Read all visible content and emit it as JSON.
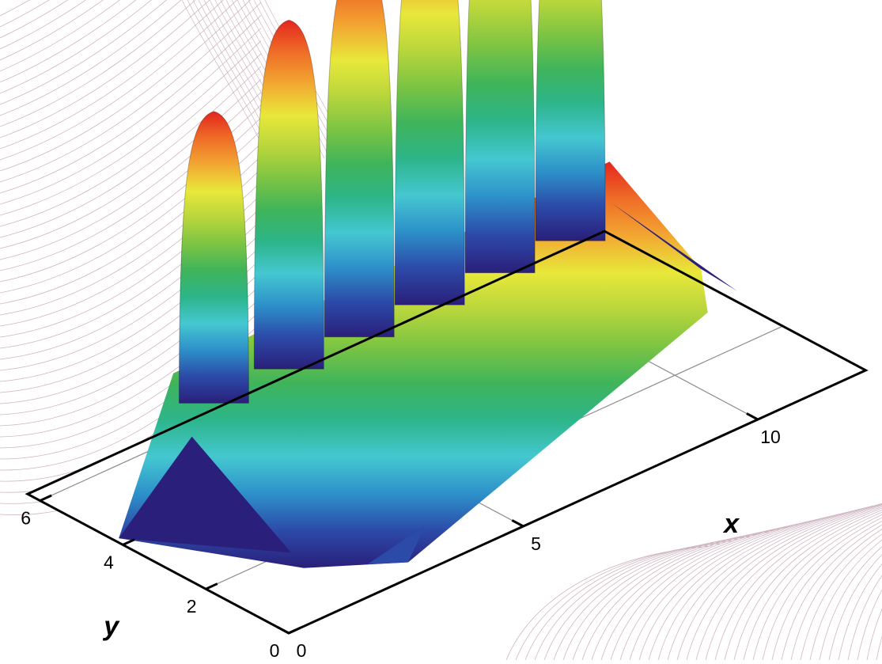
{
  "chart_data": {
    "type": "surface3d",
    "title": "",
    "xlabel": "x",
    "ylabel": "y",
    "xlim": [
      0,
      12.3
    ],
    "ylim": [
      0,
      6.3
    ],
    "x_ticks": [
      0,
      5,
      10
    ],
    "y_ticks": [
      0,
      2,
      4,
      6
    ],
    "grid": true,
    "colormap": [
      "#2a1f7a",
      "#2c4aa8",
      "#2d90c9",
      "#45c7d1",
      "#2db58a",
      "#3fb45a",
      "#7cc443",
      "#b9d63c",
      "#e8e83a",
      "#f2a732",
      "#ef6c27",
      "#e3261f"
    ],
    "surface": {
      "peaks": {
        "count": 6,
        "x": [
          3.0,
          4.6,
          6.1,
          7.6,
          9.1,
          10.6
        ],
        "y": 5.2,
        "relative_heights": [
          0.62,
          0.82,
          0.93,
          1.0,
          1.05,
          0.92
        ]
      },
      "ridge": {
        "x_start": 1.4,
        "x_end": 11.7,
        "y_center": 3.6
      },
      "trough_near_y0": {
        "x": 2.9,
        "y": 0.4
      }
    }
  },
  "icons": {
    "background": "contour-streamlines"
  },
  "colors": {
    "axis": "#000000",
    "grid": "#8c8c8c",
    "background_lines": "#c7a9b7"
  }
}
